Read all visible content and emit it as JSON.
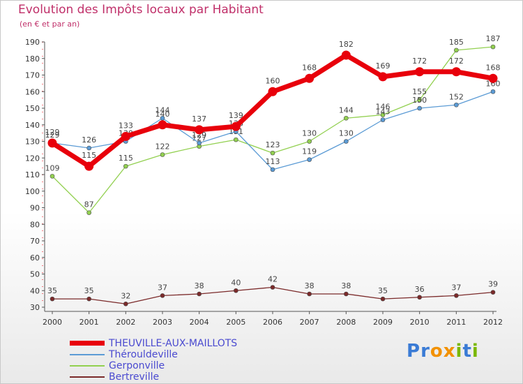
{
  "title": "Evolution des Impôts locaux par Habitant",
  "subtitle": "(en € et par an)",
  "logo": {
    "text": "Proxiti"
  },
  "chart_data": {
    "type": "line",
    "x": [
      "2000",
      "2001",
      "2002",
      "2003",
      "2004",
      "2005",
      "2006",
      "2007",
      "2008",
      "2009",
      "2010",
      "2011",
      "2012"
    ],
    "ylim": [
      30,
      190
    ],
    "yticks": [
      30,
      40,
      50,
      60,
      70,
      80,
      90,
      100,
      110,
      120,
      130,
      140,
      150,
      160,
      170,
      180,
      190
    ],
    "grid": false,
    "legend_position": "bottom-left",
    "series": [
      {
        "name": "THEUVILLE-AUX-MAILLOTS",
        "color": "#e8000b",
        "values": [
          129,
          115,
          133,
          140,
          137,
          139,
          160,
          168,
          182,
          169,
          172,
          172,
          168
        ]
      },
      {
        "name": "Thérouldeville",
        "color": "#5b9bd5",
        "values": [
          129,
          126,
          130,
          144,
          129,
          136,
          113,
          119,
          130,
          143,
          150,
          152,
          160
        ]
      },
      {
        "name": "Gerponville",
        "color": "#92d050",
        "values": [
          109,
          87,
          115,
          122,
          127,
          131,
          123,
          130,
          144,
          146,
          155,
          185,
          187
        ]
      },
      {
        "name": "Bertreville",
        "color": "#7b2a2a",
        "values": [
          35,
          35,
          32,
          37,
          38,
          40,
          42,
          38,
          38,
          35,
          36,
          37,
          39
        ]
      }
    ]
  }
}
